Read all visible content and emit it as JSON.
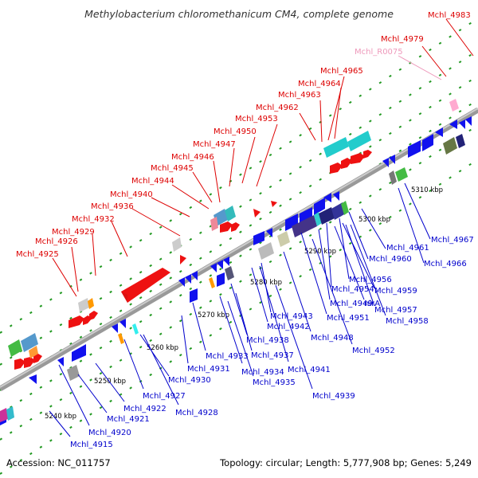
{
  "title": "Methylobacterium chloromethanicum CM4, complete genome",
  "accession": "Accession: NC_011757",
  "summary": "Topology: circular; Length: 5,777,908 bp; Genes: 5,249",
  "colors": {
    "forward_label": "#dd0000",
    "reverse_label": "#0000cc",
    "rna_label": "#ee99bb",
    "forward_gene": "#ee1111",
    "reverse_gene": "#1111ee",
    "backbone": "#888888"
  },
  "scale_labels": [
    "5240 kbp",
    "5250 kbp",
    "5260 kbp",
    "5270 kbp",
    "5280 kbp",
    "5290 kbp",
    "5300 kbp",
    "5310 kbp"
  ],
  "forward_labels": [
    "Mchl_4983",
    "Mchl_4979",
    "Mchl_R0075",
    "Mchl_4965",
    "Mchl_4964",
    "Mchl_4963",
    "Mchl_4962",
    "Mchl_4953",
    "Mchl_4950",
    "Mchl_4947",
    "Mchl_4946",
    "Mchl_4945",
    "Mchl_4944",
    "Mchl_4940",
    "Mchl_4936",
    "Mchl_4932",
    "Mchl_4929",
    "Mchl_4926",
    "Mchl_4925"
  ],
  "reverse_labels_right": [
    "Mchl_4967",
    "Mchl_4961",
    "Mchl_4966",
    "Mchl_4960",
    "Mchl_4956",
    "Mchl_4954",
    "Mchl_4959",
    "Mchl_4949",
    "nirA",
    "Mchl_4957",
    "Mchl_4951",
    "Mchl_4958",
    "Mchl_4943",
    "Mchl_4942",
    "Mchl_4948",
    "Mchl_4938",
    "Mchl_4952",
    "Mchl_4937",
    "Mchl_4933",
    "Mchl_4941",
    "Mchl_4934",
    "Mchl_4931",
    "Mchl_4935",
    "Mchl_4930",
    "Mchl_4939"
  ],
  "reverse_labels_left": [
    "Mchl_4927",
    "Mchl_4922",
    "Mchl_4928",
    "Mchl_4921",
    "Mchl_4920",
    "Mchl_4915"
  ]
}
